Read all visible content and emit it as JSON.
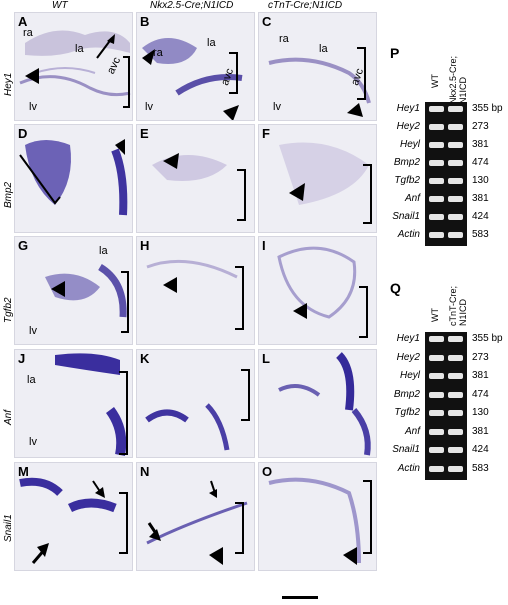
{
  "columns": [
    "WT",
    "Nkx2.5-Cre;N1ICD",
    "cTnT-Cre;N1ICD"
  ],
  "rows": [
    "Hey1",
    "Bmp2",
    "Tgfb2",
    "Anf",
    "Snail1"
  ],
  "panels": [
    {
      "letter": "A",
      "labels": [
        "ra",
        "la",
        "lv",
        "avc"
      ]
    },
    {
      "letter": "B",
      "labels": [
        "ra",
        "la",
        "lv",
        "avc"
      ]
    },
    {
      "letter": "C",
      "labels": [
        "ra",
        "la",
        "lv",
        "avc"
      ]
    },
    {
      "letter": "D",
      "labels": []
    },
    {
      "letter": "E",
      "labels": []
    },
    {
      "letter": "F",
      "labels": []
    },
    {
      "letter": "G",
      "labels": [
        "la",
        "lv"
      ]
    },
    {
      "letter": "H",
      "labels": []
    },
    {
      "letter": "I",
      "labels": []
    },
    {
      "letter": "J",
      "labels": [
        "la",
        "lv"
      ]
    },
    {
      "letter": "K",
      "labels": []
    },
    {
      "letter": "L",
      "labels": []
    },
    {
      "letter": "M",
      "labels": []
    },
    {
      "letter": "N",
      "labels": []
    },
    {
      "letter": "O",
      "labels": []
    }
  ],
  "gelP": {
    "letter": "P",
    "headers": [
      "WT",
      "Nkx2.5-Cre; N1ICD"
    ],
    "genes": [
      "Hey1",
      "Hey2",
      "Heyl",
      "Bmp2",
      "Tgfb2",
      "Anf",
      "Snail1",
      "Actin"
    ],
    "sizes": [
      "355 bp",
      "273",
      "381",
      "474",
      "130",
      "381",
      "424",
      "583"
    ]
  },
  "gelQ": {
    "letter": "Q",
    "headers": [
      "WT",
      "cTnT-Cre; N1ICD"
    ],
    "genes": [
      "Hey1",
      "Hey2",
      "Heyl",
      "Bmp2",
      "Tgfb2",
      "Anf",
      "Snail1",
      "Actin"
    ],
    "sizes": [
      "355 bp",
      "273",
      "381",
      "474",
      "130",
      "381",
      "424",
      "583"
    ]
  }
}
